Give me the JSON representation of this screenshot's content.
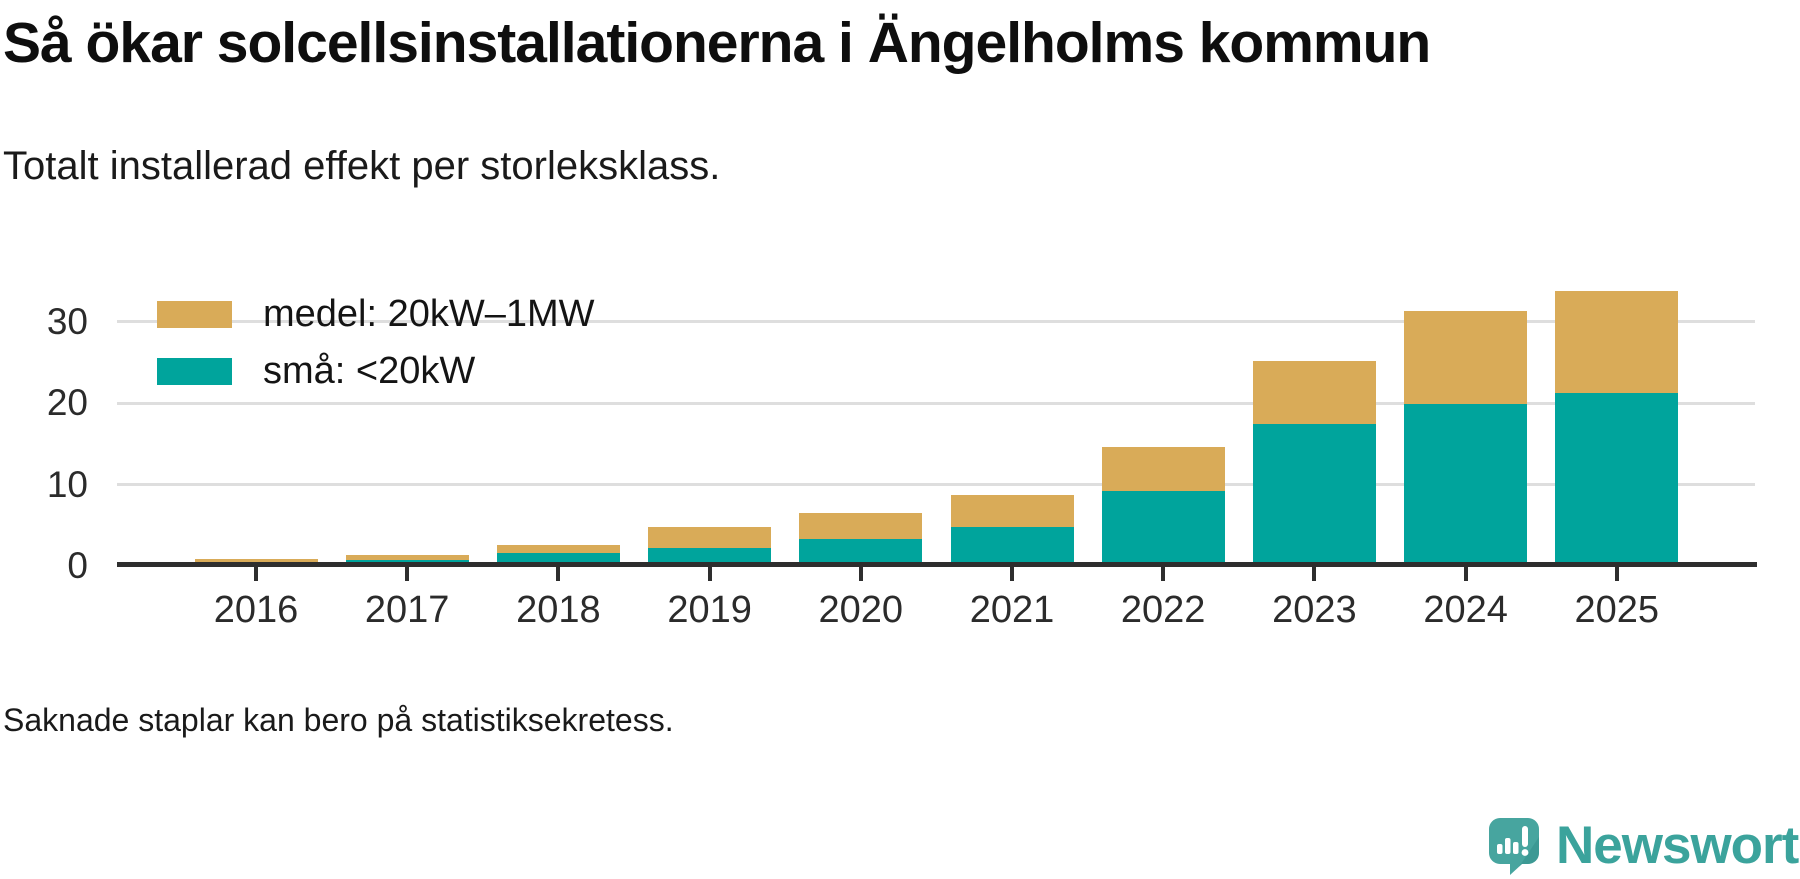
{
  "header": {
    "title": "Så ökar solcellsinstallationerna i Ängelholms kommun",
    "subtitle": "Totalt installerad effekt per storleksklass."
  },
  "footer": {
    "note": "Saknade staplar kan bero på statistiksekretess."
  },
  "logo": {
    "text": "Newsworthy",
    "icon": "newsworthy-speech-bubble-barchart-icon",
    "color": "#3ba39c"
  },
  "colors": {
    "small_series": "#00a49c",
    "medium_series": "#d9ab58",
    "gridline": "#dedede",
    "axis": "#2e2e2e"
  },
  "chart_data": {
    "type": "bar",
    "stacked": true,
    "title": "Så ökar solcellsinstallationerna i Ängelholms kommun",
    "subtitle": "Totalt installerad effekt per storleksklass.",
    "categories": [
      "2016",
      "2017",
      "2018",
      "2019",
      "2020",
      "2021",
      "2022",
      "2023",
      "2024",
      "2025"
    ],
    "series": [
      {
        "name": "små: <20kW",
        "color": "#00a49c",
        "values": [
          0.25,
          0.5,
          1.3,
          2.0,
          3.1,
          4.6,
          9.0,
          17.2,
          19.6,
          21.0
        ]
      },
      {
        "name": "medel: 20kW–1MW",
        "color": "#d9ab58",
        "values": [
          0.35,
          0.55,
          1.0,
          2.5,
          3.1,
          3.9,
          5.3,
          7.7,
          11.5,
          12.5
        ]
      }
    ],
    "totals": [
      0.6,
      1.05,
      2.3,
      4.5,
      6.2,
      8.5,
      14.3,
      24.9,
      31.1,
      33.5
    ],
    "xlabel": "",
    "ylabel": "",
    "yticks": [
      0,
      10,
      20,
      30
    ],
    "ylim": [
      0,
      34.5
    ],
    "grid": "horizontal",
    "legend_position": "top-left-inside",
    "legend_order": [
      "medel: 20kW–1MW",
      "små: <20kW"
    ],
    "note": "Saknade staplar kan bero på statistiksekretess."
  }
}
